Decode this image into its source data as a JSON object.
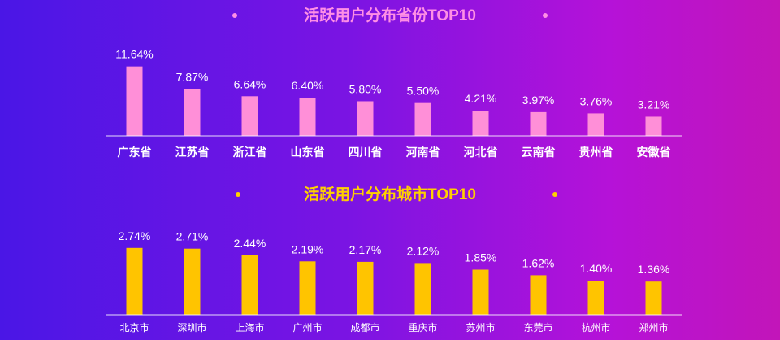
{
  "chart_data": [
    {
      "type": "bar",
      "title": "活跃用户分布省份TOP10",
      "categories": [
        "广东省",
        "江苏省",
        "浙江省",
        "山东省",
        "四川省",
        "河南省",
        "河北省",
        "云南省",
        "贵州省",
        "安徽省"
      ],
      "values": [
        11.64,
        7.87,
        6.64,
        6.4,
        5.8,
        5.5,
        4.21,
        3.97,
        3.76,
        3.21
      ],
      "value_labels": [
        "11.64%",
        "7.87%",
        "6.64%",
        "6.40%",
        "5.80%",
        "5.50%",
        "4.21%",
        "3.97%",
        "3.76%",
        "3.21%"
      ],
      "ylim": [
        0,
        12
      ],
      "grid": false,
      "colors": {
        "bar": "#ff8fd8",
        "title": "#ff8fe5",
        "axis": "#ffffff"
      }
    },
    {
      "type": "bar",
      "title": "活跃用户分布城市TOP10",
      "categories": [
        "北京市",
        "深圳市",
        "上海市",
        "广州市",
        "成都市",
        "重庆市",
        "苏州市",
        "东莞市",
        "杭州市",
        "郑州市"
      ],
      "values": [
        2.74,
        2.71,
        2.44,
        2.19,
        2.17,
        2.12,
        1.85,
        1.62,
        1.4,
        1.36
      ],
      "value_labels": [
        "2.74%",
        "2.71%",
        "2.44%",
        "2.19%",
        "2.17%",
        "2.12%",
        "1.85%",
        "1.62%",
        "1.40%",
        "1.36%"
      ],
      "ylim": [
        0,
        2.8
      ],
      "grid": false,
      "colors": {
        "bar": "#ffc400",
        "title": "#ffd000",
        "axis": "#ffffff"
      }
    }
  ]
}
